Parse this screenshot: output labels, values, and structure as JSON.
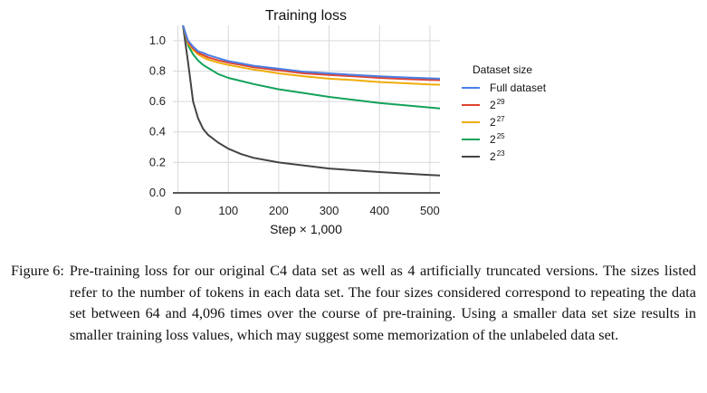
{
  "chart_data": {
    "type": "line",
    "title": "Training loss",
    "xlabel": "Step × 1,000",
    "ylabel": "",
    "xlim": [
      -10,
      520
    ],
    "ylim": [
      0.0,
      1.1
    ],
    "xticks": [
      0,
      100,
      200,
      300,
      400,
      500
    ],
    "yticks": [
      0.0,
      0.2,
      0.4,
      0.6,
      0.8,
      1.0
    ],
    "xtick_labels": [
      "0",
      "100",
      "200",
      "300",
      "400",
      "500"
    ],
    "ytick_labels": [
      "0.0",
      "0.2",
      "0.4",
      "0.6",
      "0.8",
      "1.0"
    ],
    "grid": true,
    "legend": {
      "title": "Dataset size",
      "position": "right"
    },
    "x": [
      10,
      20,
      30,
      40,
      50,
      60,
      80,
      100,
      125,
      150,
      200,
      250,
      300,
      350,
      400,
      450,
      500,
      520
    ],
    "series": [
      {
        "name": "Full dataset",
        "label_base": "Full dataset",
        "label_sup": "",
        "color": "#4a7fe6",
        "values": [
          1.1,
          1.0,
          0.96,
          0.93,
          0.92,
          0.905,
          0.885,
          0.865,
          0.85,
          0.835,
          0.815,
          0.795,
          0.785,
          0.775,
          0.765,
          0.758,
          0.752,
          0.75
        ]
      },
      {
        "name": "2^29",
        "label_base": "2",
        "label_sup": "29",
        "color": "#e0432f",
        "values": [
          1.1,
          0.99,
          0.95,
          0.92,
          0.905,
          0.89,
          0.87,
          0.855,
          0.84,
          0.825,
          0.805,
          0.785,
          0.775,
          0.765,
          0.755,
          0.748,
          0.742,
          0.74
        ]
      },
      {
        "name": "2^27",
        "label_base": "2",
        "label_sup": "27",
        "color": "#f0ad0a",
        "values": [
          1.1,
          0.98,
          0.94,
          0.91,
          0.89,
          0.875,
          0.855,
          0.84,
          0.825,
          0.81,
          0.785,
          0.765,
          0.75,
          0.74,
          0.728,
          0.72,
          0.712,
          0.71
        ]
      },
      {
        "name": "2^25",
        "label_base": "2",
        "label_sup": "25",
        "color": "#13a25a",
        "values": [
          1.1,
          0.97,
          0.91,
          0.87,
          0.84,
          0.82,
          0.78,
          0.755,
          0.735,
          0.715,
          0.68,
          0.655,
          0.63,
          0.61,
          0.59,
          0.575,
          0.56,
          0.555
        ]
      },
      {
        "name": "2^23",
        "label_base": "2",
        "label_sup": "23",
        "color": "#444444",
        "values": [
          1.1,
          0.86,
          0.6,
          0.49,
          0.42,
          0.38,
          0.33,
          0.29,
          0.255,
          0.23,
          0.2,
          0.18,
          0.16,
          0.148,
          0.137,
          0.127,
          0.118,
          0.115
        ]
      }
    ]
  },
  "caption": {
    "label": "Figure 6:",
    "text": "Pre-training loss for our original C4 data set as well as 4 artificially truncated versions. The sizes listed refer to the number of tokens in each data set. The four sizes considered correspond to repeating the data set between 64 and 4,096 times over the course of pre-training. Using a smaller data set size results in smaller training loss values, which may suggest some memorization of the unlabeled data set."
  }
}
